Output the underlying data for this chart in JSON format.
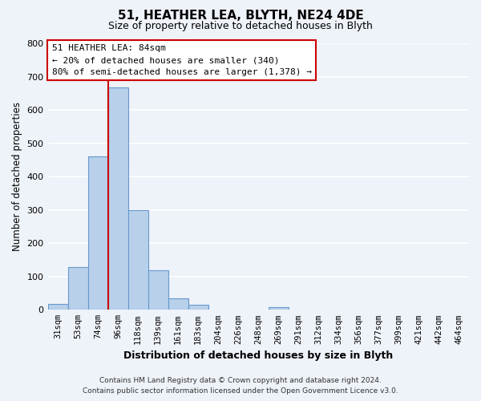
{
  "title": "51, HEATHER LEA, BLYTH, NE24 4DE",
  "subtitle": "Size of property relative to detached houses in Blyth",
  "xlabel": "Distribution of detached houses by size in Blyth",
  "ylabel": "Number of detached properties",
  "bin_labels": [
    "31sqm",
    "53sqm",
    "74sqm",
    "96sqm",
    "118sqm",
    "139sqm",
    "161sqm",
    "183sqm",
    "204sqm",
    "226sqm",
    "248sqm",
    "269sqm",
    "291sqm",
    "312sqm",
    "334sqm",
    "356sqm",
    "377sqm",
    "399sqm",
    "421sqm",
    "442sqm",
    "464sqm"
  ],
  "bar_heights": [
    18,
    128,
    460,
    668,
    300,
    118,
    35,
    14,
    0,
    0,
    0,
    8,
    0,
    0,
    0,
    0,
    0,
    0,
    0,
    0,
    0
  ],
  "bar_color": "#b8d0ea",
  "bar_edge_color": "#6699cc",
  "marker_label": "51 HEATHER LEA: 84sqm",
  "annotation_line1": "← 20% of detached houses are smaller (340)",
  "annotation_line2": "80% of semi-detached houses are larger (1,378) →",
  "marker_color": "#cc0000",
  "ylim": [
    0,
    800
  ],
  "yticks": [
    0,
    100,
    200,
    300,
    400,
    500,
    600,
    700,
    800
  ],
  "footer_line1": "Contains HM Land Registry data © Crown copyright and database right 2024.",
  "footer_line2": "Contains public sector information licensed under the Open Government Licence v3.0.",
  "bg_color": "#eef2f9",
  "plot_bg_color": "#eef2f9",
  "grid_color": "#ffffff"
}
